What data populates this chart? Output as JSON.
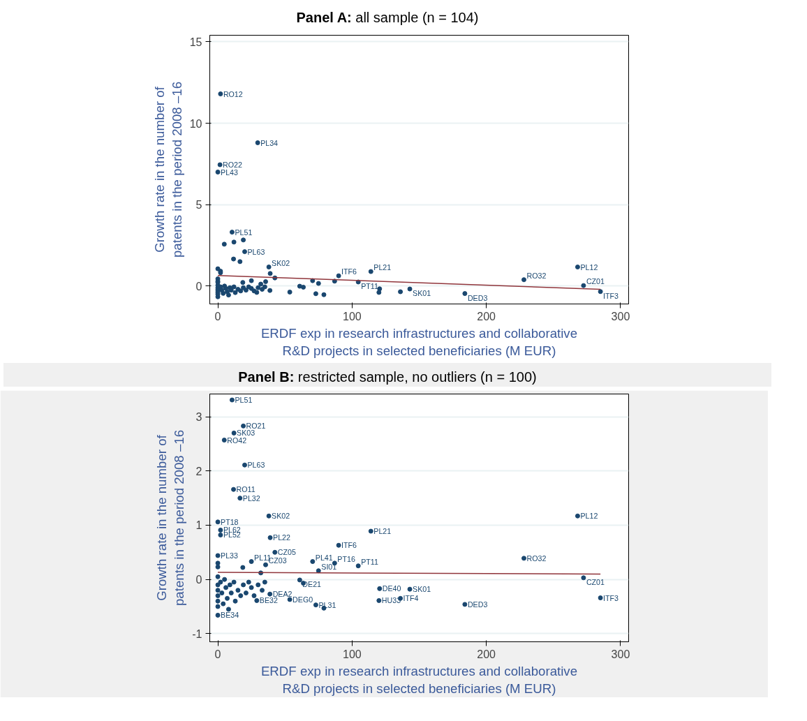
{
  "chart_data": [
    {
      "type": "scatter",
      "title": "Panel A: all sample (n = 104)",
      "xlabel": "ERDF exp in research infrastructures and collaborative R&D projects in selected beneficiaries (M EUR)",
      "ylabel": "Growth rate in the number of patents in the period 2008 –16",
      "xlim": [
        -6,
        306
      ],
      "xticks": [
        0,
        100,
        200,
        300
      ],
      "ylim": [
        -1.1,
        15.4
      ],
      "yticks": [
        0,
        5,
        10,
        15
      ],
      "grid": "y",
      "series": [
        {
          "marker": "circle",
          "color": "#1a476f",
          "x": [
            2,
            29.7,
            1.6,
            0,
            10.6,
            19,
            12,
            4.8,
            20,
            11.7,
            16.5,
            0,
            2,
            2,
            38,
            39,
            42.5,
            114,
            90,
            70.6,
            87,
            104.6,
            75,
            25,
            35.6,
            18.6,
            32,
            0,
            61,
            63.7,
            38.8,
            29,
            53.6,
            73,
            79,
            120.5,
            143,
            120,
            136,
            184,
            228,
            268,
            272.4,
            285,
            0,
            0,
            0,
            0,
            0,
            0,
            0,
            2,
            3,
            4,
            5,
            6,
            7,
            8,
            9,
            10,
            12,
            13,
            15,
            17,
            19,
            21,
            23,
            25,
            27,
            30,
            33,
            35,
            0,
            0
          ],
          "values": [
            11.8,
            8.8,
            7.45,
            7.0,
            3.31,
            2.83,
            2.7,
            2.57,
            2.11,
            1.66,
            1.5,
            1.06,
            0.91,
            0.82,
            1.17,
            0.77,
            0.5,
            0.89,
            0.63,
            0.33,
            0.3,
            0.25,
            0.16,
            0.33,
            0.27,
            0.22,
            0.12,
            0.44,
            -0.01,
            -0.07,
            -0.27,
            -0.39,
            -0.37,
            -0.47,
            -0.53,
            -0.17,
            -0.18,
            -0.39,
            -0.35,
            -0.46,
            0.39,
            1.17,
            0.03,
            -0.34,
            -0.66,
            -0.1,
            -0.2,
            -0.3,
            -0.4,
            -0.5,
            0.05,
            -0.05,
            -0.25,
            -0.45,
            0.0,
            -0.15,
            -0.35,
            -0.55,
            -0.1,
            -0.25,
            -0.05,
            -0.4,
            -0.2,
            -0.3,
            -0.1,
            -0.25,
            -0.05,
            -0.15,
            -0.3,
            -0.1,
            -0.2,
            -0.05,
            0.3,
            0.23
          ],
          "value_labels": [
            "RO12",
            "PL34",
            "RO22",
            "PL43",
            "PL51",
            null,
            null,
            null,
            "PL63",
            null,
            null,
            null,
            null,
            null,
            "SK02",
            null,
            null,
            "PL21",
            "ITF6",
            null,
            null,
            "PT11",
            null,
            null,
            null,
            null,
            null,
            null,
            null,
            null,
            null,
            null,
            null,
            null,
            null,
            null,
            "SK01",
            null,
            null,
            "DED3",
            "RO32",
            "PL12",
            "CZ01",
            "ITF3",
            null,
            null,
            null,
            null,
            null,
            null,
            null,
            null,
            null,
            null,
            null,
            null,
            null,
            null,
            null,
            null,
            null,
            null,
            null,
            null,
            null,
            null,
            null,
            null,
            null,
            null,
            null,
            null,
            null,
            null
          ]
        },
        {
          "type": "line",
          "color": "#90353b",
          "x": [
            0,
            285
          ],
          "values": [
            0.65,
            -0.2
          ]
        }
      ]
    },
    {
      "type": "scatter",
      "title": "Panel B: restricted sample, no outliers (n = 100)",
      "xlabel": "ERDF exp in research infrastructures and collaborative R&D projects in selected beneficiaries (M EUR)",
      "ylabel": "Growth rate in the number of patents in the period 2008 –16",
      "xlim": [
        -6,
        306
      ],
      "xticks": [
        0,
        100,
        200,
        300
      ],
      "ylim": [
        -1.15,
        3.42
      ],
      "yticks": [
        -1,
        0,
        1,
        2,
        3
      ],
      "grid": "y",
      "series": [
        {
          "marker": "circle",
          "color": "#1a476f",
          "x": [
            10.6,
            19,
            12,
            4.8,
            20,
            11.7,
            16.5,
            0,
            2,
            2,
            38,
            39,
            42.5,
            114,
            90,
            70.6,
            87,
            104.6,
            75,
            25,
            35.6,
            18.6,
            32,
            0,
            61,
            63.7,
            38.8,
            29,
            53.6,
            73,
            79,
            120.5,
            143,
            120,
            136,
            184,
            228,
            268,
            272.4,
            285,
            0,
            0,
            0,
            0,
            0,
            0,
            0,
            2,
            3,
            4,
            5,
            6,
            7,
            8,
            9,
            10,
            12,
            13,
            15,
            17,
            19,
            21,
            23,
            25,
            27,
            30,
            33,
            35,
            0,
            0
          ],
          "values": [
            3.31,
            2.83,
            2.7,
            2.57,
            2.11,
            1.66,
            1.5,
            1.06,
            0.91,
            0.82,
            1.17,
            0.77,
            0.5,
            0.89,
            0.63,
            0.33,
            0.3,
            0.25,
            0.16,
            0.33,
            0.27,
            0.22,
            0.12,
            0.44,
            -0.01,
            -0.07,
            -0.27,
            -0.39,
            -0.37,
            -0.47,
            -0.53,
            -0.17,
            -0.18,
            -0.39,
            -0.35,
            -0.46,
            0.39,
            1.17,
            0.03,
            -0.34,
            -0.66,
            -0.1,
            -0.2,
            -0.3,
            -0.4,
            -0.5,
            0.05,
            -0.05,
            -0.25,
            -0.45,
            0.0,
            -0.15,
            -0.35,
            -0.55,
            -0.1,
            -0.25,
            -0.05,
            -0.4,
            -0.2,
            -0.3,
            -0.1,
            -0.25,
            -0.05,
            -0.15,
            -0.3,
            -0.1,
            -0.2,
            -0.05,
            0.3,
            0.23
          ],
          "value_labels": [
            "PL51",
            "RO21",
            "SK03",
            "RO42",
            "PL63",
            "RO11",
            "PL32",
            "PT18",
            "PL62",
            "PL52",
            "SK02",
            "PL22",
            "CZ05",
            "PL21",
            "ITF6",
            "PL41",
            "PT16",
            "PT11",
            "SI01",
            "PL11",
            "CZ03",
            null,
            null,
            "PL33",
            "DE21",
            null,
            "DEA2",
            "BE32",
            "DEG0",
            "PL31",
            null,
            "DE40",
            "SK01",
            "HU33",
            "ITF4",
            "DED3",
            "RO32",
            "PL12",
            "CZ01",
            "ITF3",
            "BE34",
            null,
            null,
            null,
            null,
            null,
            null,
            null,
            null,
            null,
            null,
            null,
            null,
            null,
            null,
            null,
            null,
            null,
            null,
            null,
            null,
            null,
            null,
            null,
            null,
            null,
            null,
            null,
            null,
            null
          ]
        },
        {
          "type": "line",
          "color": "#90353b",
          "x": [
            0,
            285
          ],
          "values": [
            0.13,
            0.1
          ]
        }
      ]
    }
  ]
}
